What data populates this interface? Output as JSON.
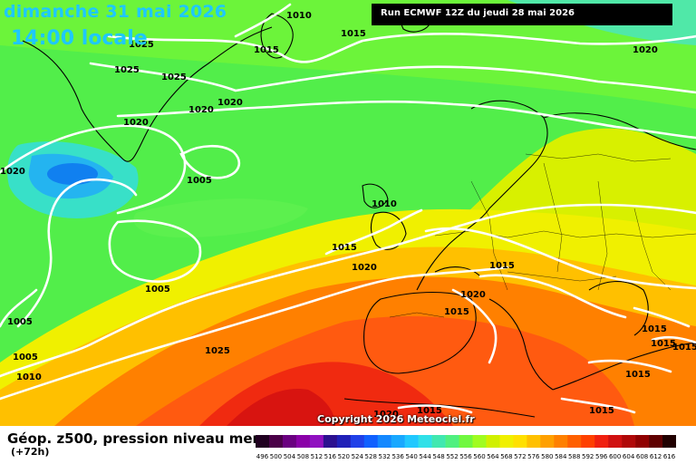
{
  "header": {
    "date": "dimanche 31 mai 2026",
    "time": "14:00 locale",
    "run": "Run ECMWF 12Z du jeudi 28 mai 2026"
  },
  "footer": {
    "parameter": "Géop. z500, pression niveau mer",
    "lead": "(+72h)",
    "copyright": "Copyright 2026 Meteociel.fr"
  },
  "isobar_labels": [
    "1010",
    "1015",
    "1015",
    "1020",
    "1025",
    "1025",
    "1025",
    "1020",
    "1020",
    "1020",
    "1020",
    "1005",
    "1010",
    "1015",
    "1020",
    "1005",
    "1005",
    "1005",
    "1010",
    "1015",
    "1020",
    "1015",
    "1025",
    "1015",
    "1015",
    "1015",
    "1015",
    "1015",
    "1015",
    "1020"
  ],
  "legend": {
    "values": [
      "496",
      "500",
      "504",
      "508",
      "512",
      "516",
      "520",
      "524",
      "528",
      "532",
      "536",
      "540",
      "544",
      "548",
      "552",
      "556",
      "560",
      "564",
      "568",
      "572",
      "576",
      "580",
      "584",
      "588",
      "592",
      "596",
      "600",
      "604",
      "608",
      "612",
      "616"
    ],
    "colors": [
      "#200020",
      "#4a0048",
      "#6a0080",
      "#8a00a8",
      "#9010c0",
      "#2c1090",
      "#2020b8",
      "#2040e8",
      "#1060ff",
      "#1488ff",
      "#18a8ff",
      "#20c8ff",
      "#30e0e8",
      "#40e8b0",
      "#50f080",
      "#70f840",
      "#a0fc20",
      "#d0f000",
      "#f0f000",
      "#ffe000",
      "#ffc000",
      "#ffa000",
      "#ff8000",
      "#ff6000",
      "#ff4000",
      "#f02010",
      "#d01010",
      "#b00808",
      "#900000",
      "#600000",
      "#200000"
    ]
  }
}
